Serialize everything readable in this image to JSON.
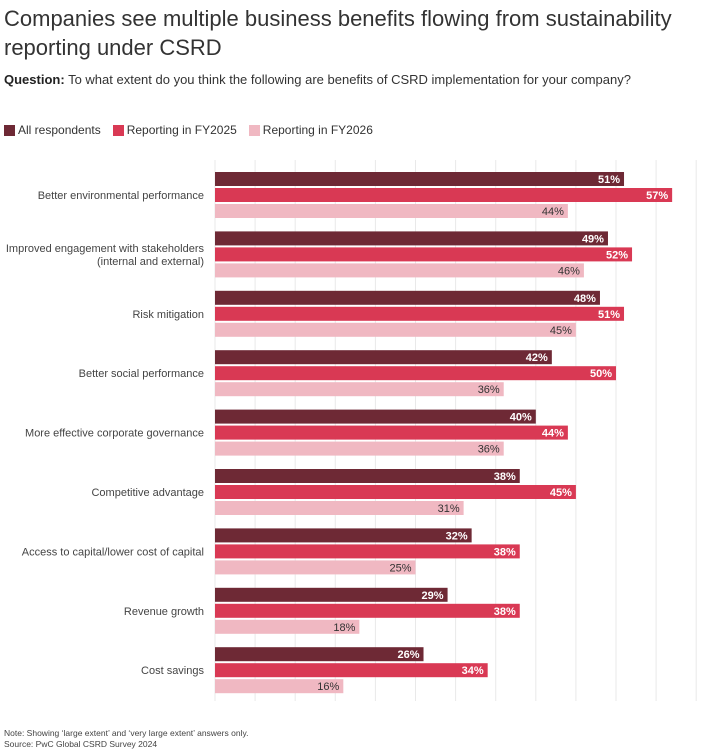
{
  "chart_data": {
    "type": "bar",
    "orientation": "horizontal",
    "title": "Companies see multiple business benefits flowing from sustainability reporting under CSRD",
    "subtitle_label": "Question:",
    "subtitle": "To what extent do you think the following are benefits of CSRD implementation for your company?",
    "xlabel": "",
    "ylabel": "",
    "xlim": [
      0,
      60
    ],
    "grid": true,
    "grid_step": 5,
    "legend_position": "top-left",
    "value_suffix": "%",
    "categories": [
      [
        "Better environmental performance"
      ],
      [
        "Improved engagement with stakeholders",
        "(internal and external)"
      ],
      [
        "Risk mitigation"
      ],
      [
        "Better social performance"
      ],
      [
        "More effective corporate governance"
      ],
      [
        "Competitive advantage"
      ],
      [
        "Access to capital/lower cost of capital"
      ],
      [
        "Revenue growth"
      ],
      [
        "Cost savings"
      ]
    ],
    "series": [
      {
        "name": "All respondents",
        "color": "#6E2935",
        "label_color": "#ffffff",
        "values": [
          51,
          49,
          48,
          42,
          40,
          38,
          32,
          29,
          26
        ]
      },
      {
        "name": "Reporting in FY2025",
        "color": "#D93954",
        "label_color": "#ffffff",
        "values": [
          57,
          52,
          51,
          50,
          44,
          45,
          38,
          38,
          34
        ]
      },
      {
        "name": "Reporting in FY2026",
        "color": "#F0B8C2",
        "label_color": "#333333",
        "values": [
          44,
          46,
          45,
          36,
          36,
          31,
          25,
          18,
          16
        ]
      }
    ],
    "note": "Note: Showing ‘large extent’ and ‘very large extent’ answers only.",
    "source": "Source: PwC Global CSRD Survey 2024"
  }
}
